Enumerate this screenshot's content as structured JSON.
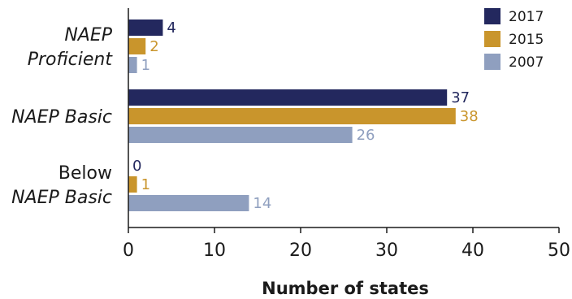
{
  "chart_data": {
    "type": "bar",
    "orientation": "horizontal",
    "categories": [
      [
        "NAEP",
        "Proficient"
      ],
      [
        "NAEP Basic"
      ],
      [
        "Below",
        "NAEP Basic"
      ]
    ],
    "category_italic": [
      [
        true,
        true
      ],
      [
        true
      ],
      [
        false,
        true
      ]
    ],
    "series": [
      {
        "name": "2017",
        "color": "#23285e",
        "values": [
          4,
          37,
          0
        ]
      },
      {
        "name": "2015",
        "color": "#c9952c",
        "values": [
          2,
          38,
          1
        ]
      },
      {
        "name": "2007",
        "color": "#8f9fbf",
        "values": [
          1,
          26,
          14
        ]
      }
    ],
    "xlabel": "Number of states",
    "xlim": [
      0,
      50
    ],
    "xticks": [
      0,
      10,
      20,
      30,
      40,
      50
    ],
    "grid": false,
    "legend_position": "top-right"
  }
}
